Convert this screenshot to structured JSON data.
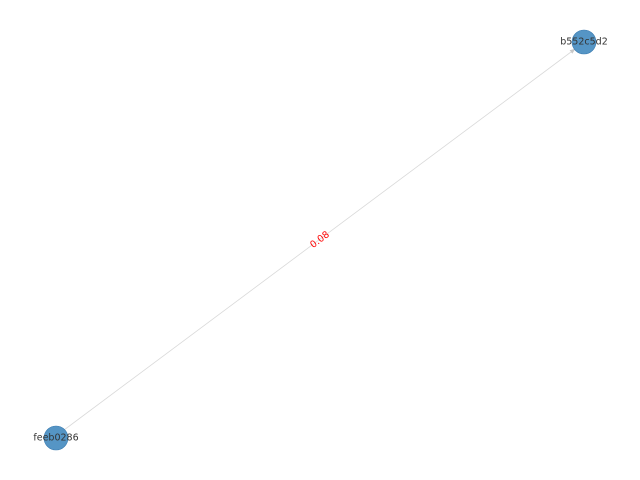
{
  "graph": {
    "directed": true,
    "nodes": [
      {
        "id": "b552c5d2",
        "label": "b552c5d2"
      },
      {
        "id": "feeb0286",
        "label": "feeb0286"
      }
    ],
    "edges": [
      {
        "source": "feeb0286",
        "target": "b552c5d2",
        "label": "0.08"
      }
    ]
  },
  "colors": {
    "node_fill": "#4c8fc2",
    "node_stroke": "#2f6fa3",
    "edge": "#d9d9d9",
    "edge_label": "#ff0000",
    "background": "#ffffff"
  }
}
